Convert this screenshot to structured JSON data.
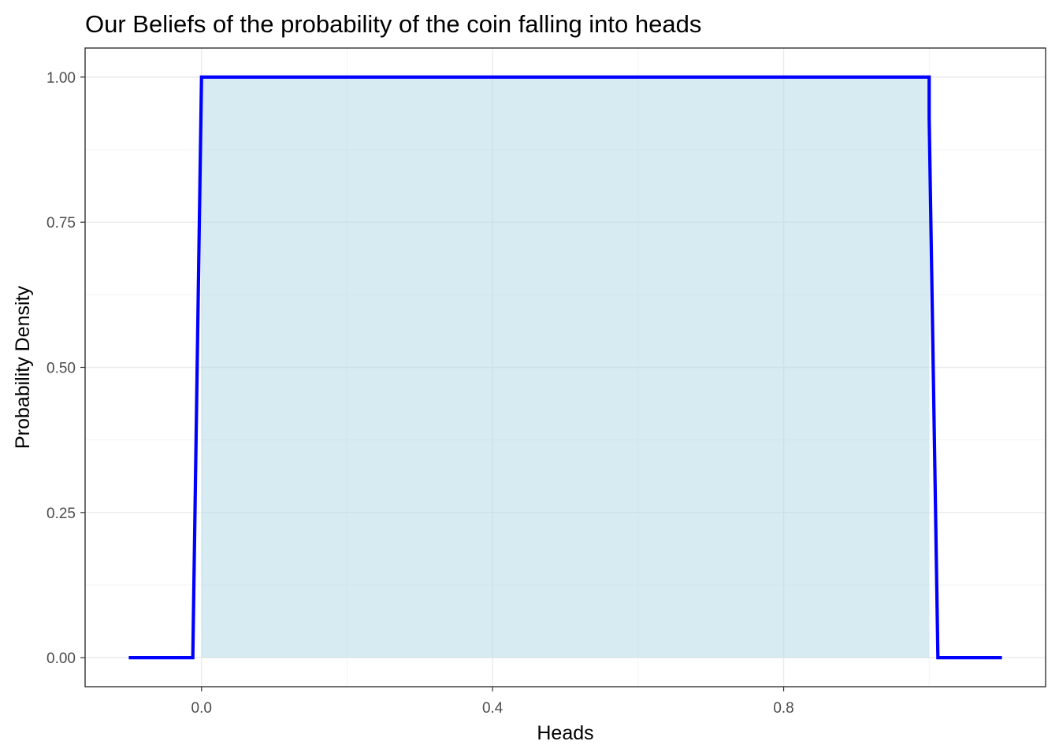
{
  "chart_data": {
    "type": "area",
    "title": "Our Beliefs of the probability of the coin falling into heads",
    "xlabel": "Heads",
    "ylabel": "Probability Density",
    "xlim": [
      -0.16,
      1.16
    ],
    "ylim": [
      -0.05,
      1.05
    ],
    "x_ticks": [
      {
        "value": 0.0,
        "label": "0.0"
      },
      {
        "value": 0.4,
        "label": "0.4"
      },
      {
        "value": 0.8,
        "label": "0.8"
      }
    ],
    "y_ticks": [
      {
        "value": 0.0,
        "label": "0.00"
      },
      {
        "value": 0.25,
        "label": "0.25"
      },
      {
        "value": 0.5,
        "label": "0.50"
      },
      {
        "value": 0.75,
        "label": "0.75"
      },
      {
        "value": 1.0,
        "label": "1.00"
      }
    ],
    "grid": true,
    "series": [
      {
        "x": [
          -0.1,
          -0.012,
          0.0,
          1.0,
          1.0,
          1.012,
          1.1
        ],
        "y": [
          0.0,
          0.0,
          1.0,
          1.0,
          0.93,
          0.0,
          0.0
        ],
        "line_color": "#0000ff"
      }
    ],
    "fill": {
      "x_range": [
        0.0,
        1.0
      ],
      "y": 1.0,
      "color": "#add8e6",
      "opacity": 0.5
    }
  }
}
